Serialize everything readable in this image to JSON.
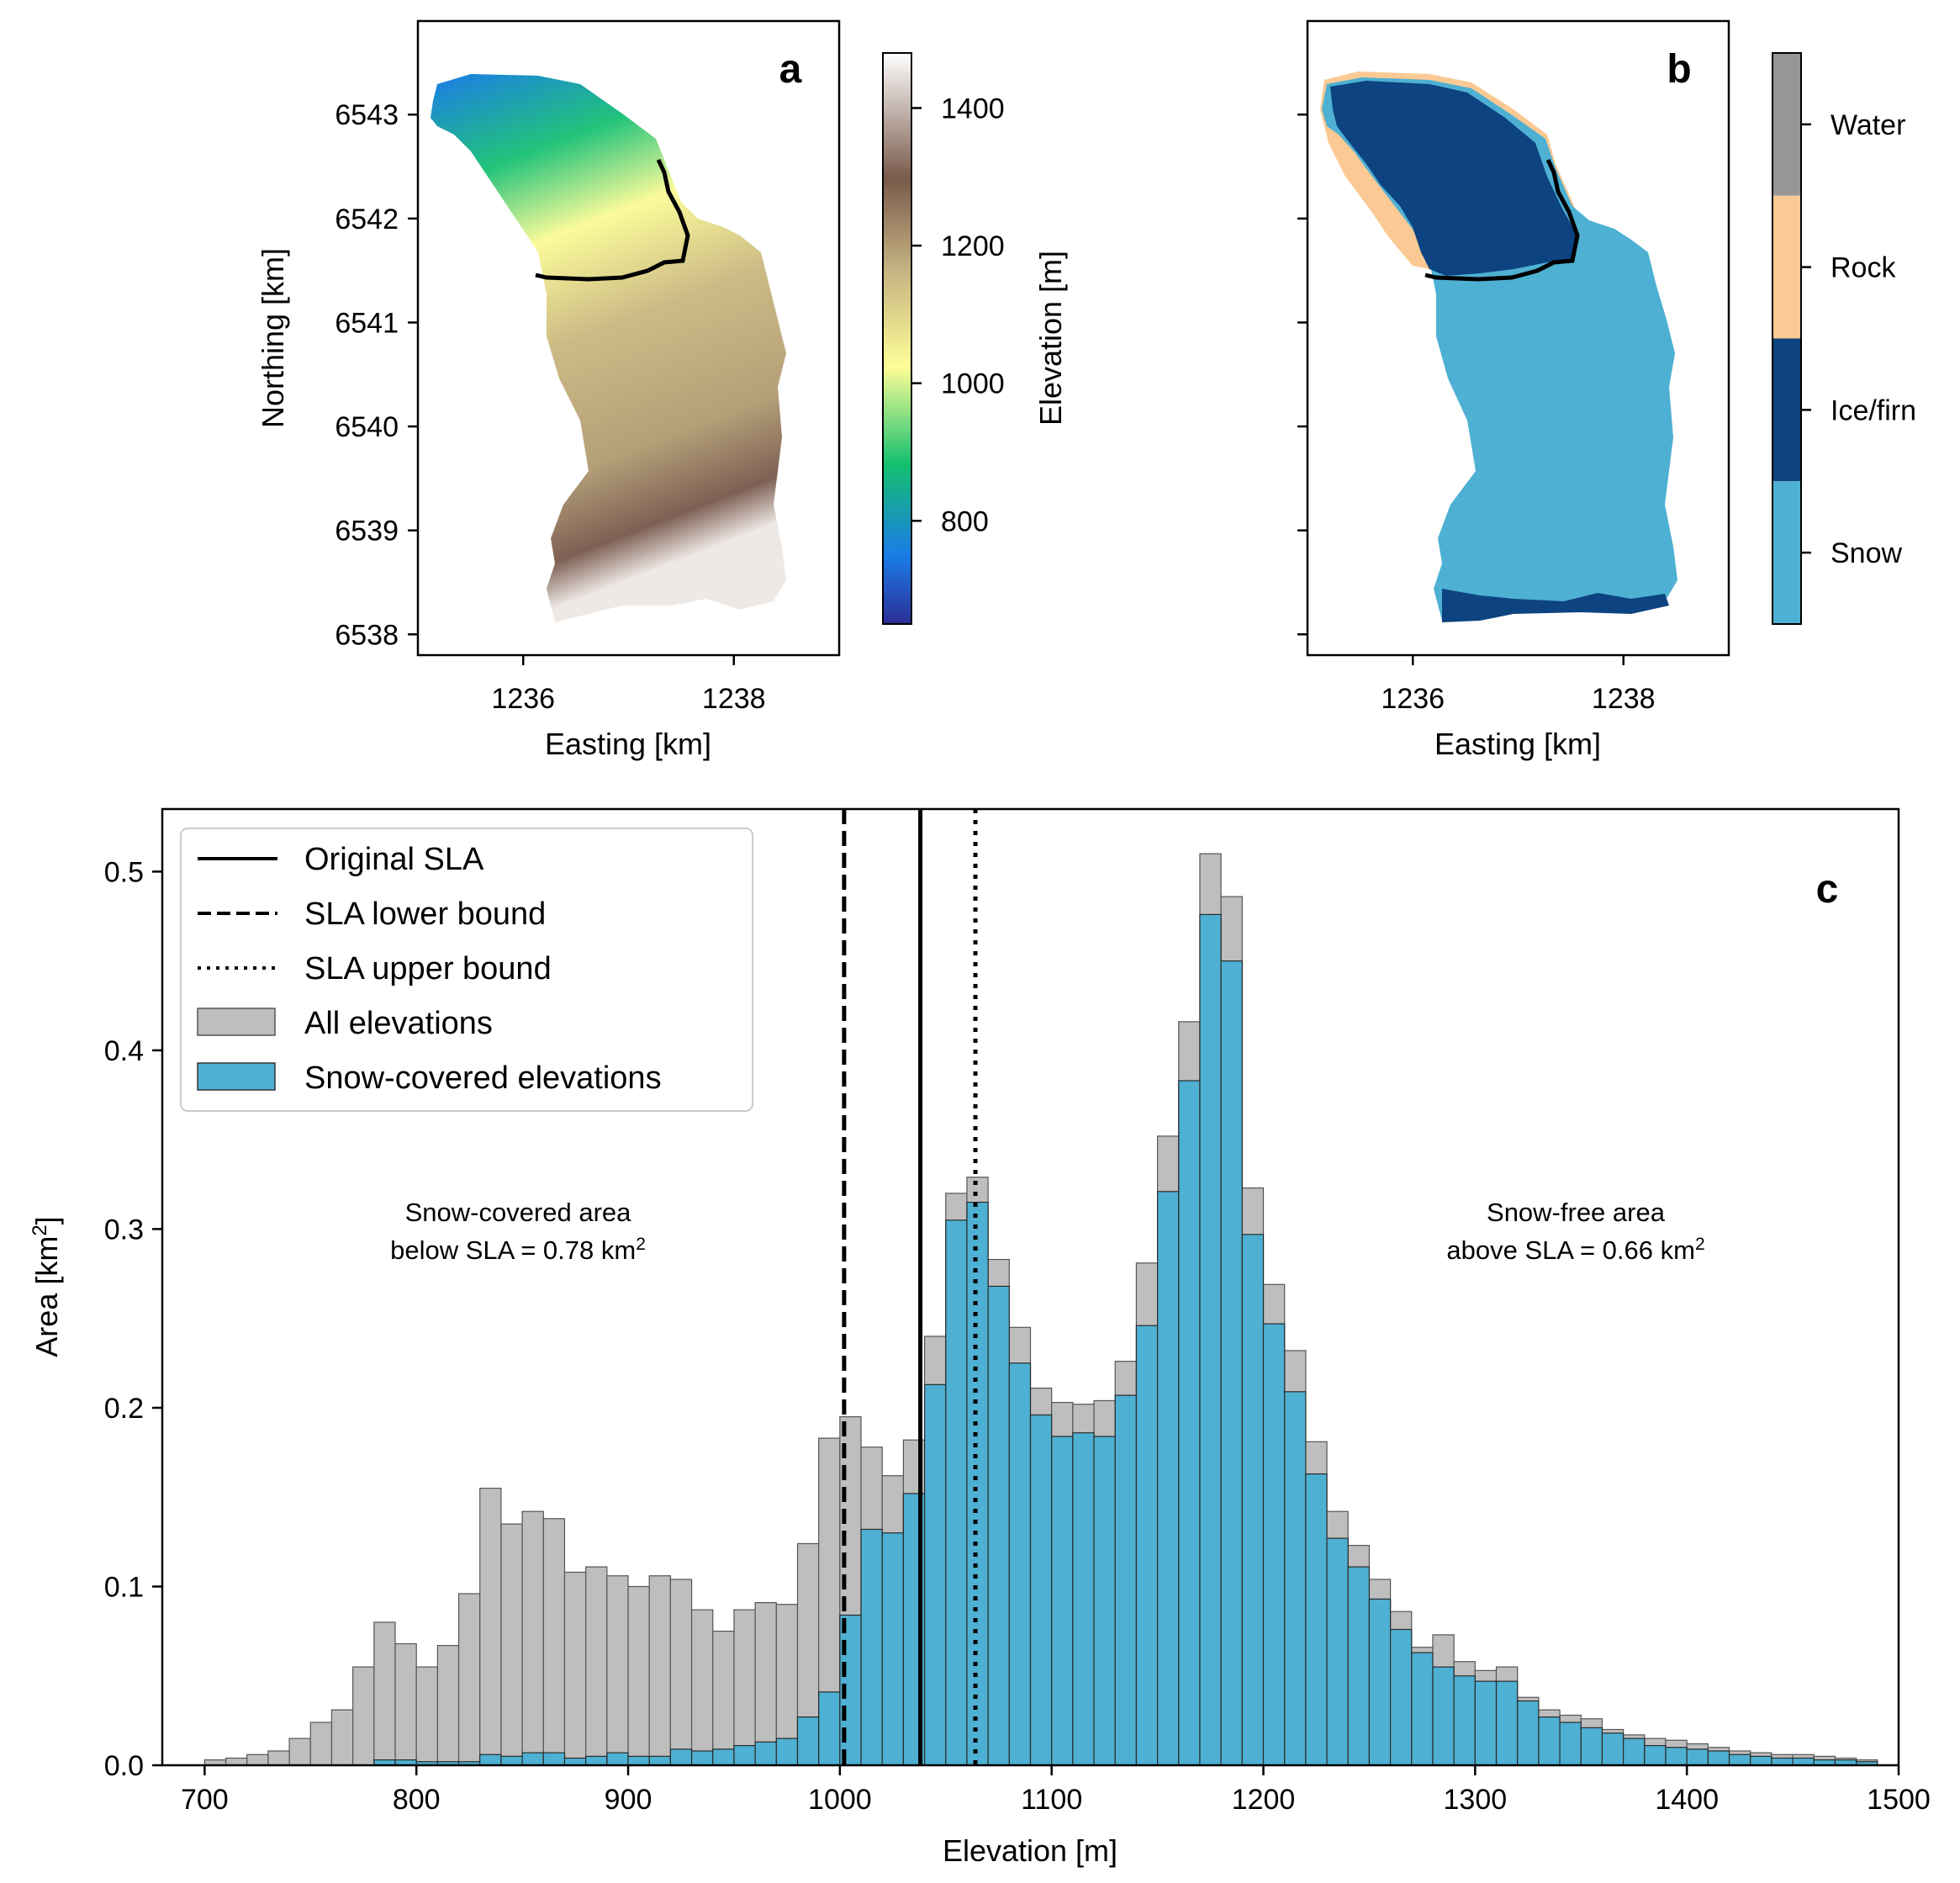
{
  "panel_a": {
    "letter": "a",
    "xlabel": "Easting [km]",
    "ylabel": "Northing [km]",
    "x_ticks": [
      1236,
      1238
    ],
    "y_ticks": [
      6538,
      6539,
      6540,
      6541,
      6542,
      6543
    ],
    "xlim": [
      1235.0,
      1239.0
    ],
    "ylim": [
      6537.8,
      6543.9
    ],
    "colorbar": {
      "label": "Elevation [m]",
      "ticks": [
        800,
        1000,
        1200,
        1400
      ],
      "range": [
        650,
        1480
      ]
    }
  },
  "panel_b": {
    "letter": "b",
    "xlabel": "Easting [km]",
    "x_ticks": [
      1236,
      1238
    ],
    "classes": [
      {
        "name": "Water",
        "color": "#969696"
      },
      {
        "name": "Rock",
        "color": "#fbc994"
      },
      {
        "name": "Ice/firn",
        "color": "#0c4380"
      },
      {
        "name": "Snow",
        "color": "#4eb0d2"
      }
    ]
  },
  "chart_data": {
    "type": "bar",
    "letter": "c",
    "xlabel": "Elevation [m]",
    "ylabel": "Area [km",
    "ylabel_sup": "2",
    "ylabel_end": "]",
    "xlim": [
      680,
      1500
    ],
    "ylim": [
      0,
      0.535
    ],
    "x_ticks": [
      700,
      800,
      900,
      1000,
      1100,
      1200,
      1300,
      1400,
      1500
    ],
    "y_ticks": [
      0.0,
      0.1,
      0.2,
      0.3,
      0.4,
      0.5
    ],
    "bin_start": 700,
    "bin_width": 10,
    "series": [
      {
        "name": "All elevations",
        "color": "#bebebe",
        "values": [
          0.003,
          0.004,
          0.006,
          0.008,
          0.015,
          0.024,
          0.031,
          0.055,
          0.08,
          0.068,
          0.055,
          0.067,
          0.096,
          0.155,
          0.135,
          0.142,
          0.138,
          0.108,
          0.111,
          0.106,
          0.1,
          0.106,
          0.104,
          0.087,
          0.075,
          0.087,
          0.091,
          0.09,
          0.124,
          0.183,
          0.195,
          0.178,
          0.162,
          0.182,
          0.24,
          0.32,
          0.329,
          0.283,
          0.245,
          0.211,
          0.203,
          0.202,
          0.204,
          0.226,
          0.281,
          0.352,
          0.416,
          0.51,
          0.486,
          0.323,
          0.269,
          0.232,
          0.181,
          0.142,
          0.123,
          0.104,
          0.086,
          0.066,
          0.073,
          0.058,
          0.053,
          0.055,
          0.038,
          0.031,
          0.028,
          0.026,
          0.02,
          0.017,
          0.015,
          0.014,
          0.012,
          0.01,
          0.008,
          0.007,
          0.006,
          0.006,
          0.005,
          0.004,
          0.003
        ]
      },
      {
        "name": "Snow-covered elevations",
        "color": "#4eb0d2",
        "values": [
          0.0,
          0.0,
          0.0,
          0.0,
          0.0,
          0.0,
          0.0,
          0.0,
          0.003,
          0.003,
          0.002,
          0.002,
          0.002,
          0.006,
          0.005,
          0.007,
          0.007,
          0.004,
          0.005,
          0.007,
          0.005,
          0.005,
          0.009,
          0.008,
          0.009,
          0.011,
          0.013,
          0.015,
          0.027,
          0.041,
          0.084,
          0.132,
          0.13,
          0.152,
          0.213,
          0.305,
          0.315,
          0.268,
          0.225,
          0.196,
          0.184,
          0.186,
          0.184,
          0.207,
          0.246,
          0.321,
          0.383,
          0.476,
          0.45,
          0.297,
          0.247,
          0.209,
          0.163,
          0.127,
          0.111,
          0.093,
          0.076,
          0.063,
          0.055,
          0.05,
          0.047,
          0.047,
          0.036,
          0.027,
          0.024,
          0.021,
          0.018,
          0.015,
          0.011,
          0.01,
          0.009,
          0.008,
          0.006,
          0.005,
          0.004,
          0.004,
          0.003,
          0.003,
          0.002
        ]
      }
    ],
    "sla_lines": [
      {
        "name": "Original SLA",
        "x": 1038,
        "style": "solid"
      },
      {
        "name": "SLA lower bound",
        "x": 1002,
        "style": "dashed"
      },
      {
        "name": "SLA upper bound",
        "x": 1064,
        "style": "dotted"
      }
    ],
    "legend_placement": "top-left",
    "annotations": {
      "left_line1": "Snow-covered area",
      "left_line2": "below SLA = 0.78 km",
      "left_sup": "2",
      "right_line1": "Snow-free area",
      "right_line2": "above SLA = 0.66 km",
      "right_sup": "2"
    }
  }
}
